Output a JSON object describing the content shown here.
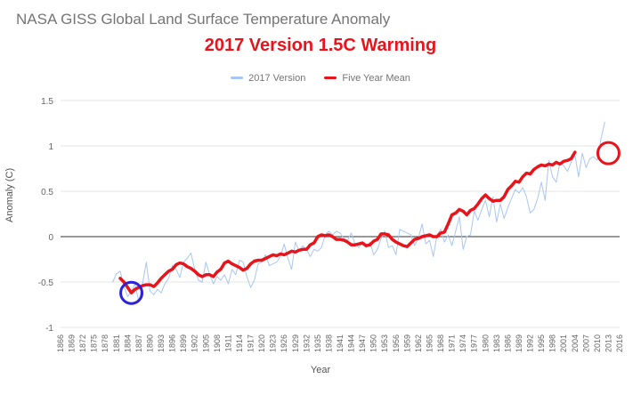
{
  "title": "NASA GISS Global Land Surface Temperature Anomaly",
  "subtitle": "2017 Version  1.5C Warming",
  "colors": {
    "raw": "#a9c6f5",
    "mean": "#e8141b",
    "blue_circle": "#2a23d8",
    "red_circle": "#e8141b",
    "zero_line": "#333333",
    "grid": "#e6e6e6"
  },
  "chart_data": {
    "type": "line",
    "xlabel": "Year",
    "ylabel": "Anomaly (C)",
    "xlim": [
      1866,
      2016
    ],
    "ylim": [
      -1,
      1.5
    ],
    "ytick_labels": [
      "1.5",
      "1",
      "0.5",
      "0",
      "-0.5",
      "-1"
    ],
    "ytick_values": [
      1.5,
      1,
      0.5,
      0,
      -0.5,
      -1
    ],
    "xtick_labels": [
      "1866",
      "1869",
      "1872",
      "1875",
      "1878",
      "1881",
      "1884",
      "1887",
      "1890",
      "1893",
      "1896",
      "1899",
      "1902",
      "1905",
      "1908",
      "1911",
      "1914",
      "1917",
      "1920",
      "1923",
      "1926",
      "1929",
      "1932",
      "1935",
      "1938",
      "1941",
      "1944",
      "1947",
      "1950",
      "1953",
      "1956",
      "1959",
      "1962",
      "1965",
      "1968",
      "1971",
      "1974",
      "1977",
      "1980",
      "1983",
      "1986",
      "1989",
      "1992",
      "1995",
      "1998",
      "2001",
      "2004",
      "2007",
      "2010",
      "2013",
      "2016"
    ],
    "legend_position": "top",
    "series": [
      {
        "name": "2017 Version",
        "x_start": 1880,
        "values": [
          -0.5,
          -0.41,
          -0.38,
          -0.55,
          -0.66,
          -0.6,
          -0.52,
          -0.72,
          -0.52,
          -0.28,
          -0.6,
          -0.64,
          -0.58,
          -0.62,
          -0.52,
          -0.46,
          -0.32,
          -0.36,
          -0.45,
          -0.28,
          -0.24,
          -0.18,
          -0.36,
          -0.48,
          -0.5,
          -0.28,
          -0.42,
          -0.52,
          -0.44,
          -0.48,
          -0.42,
          -0.52,
          -0.36,
          -0.42,
          -0.26,
          -0.28,
          -0.44,
          -0.56,
          -0.48,
          -0.3,
          -0.28,
          -0.2,
          -0.32,
          -0.3,
          -0.28,
          -0.22,
          -0.08,
          -0.24,
          -0.36,
          -0.06,
          -0.16,
          -0.1,
          -0.14,
          -0.22,
          -0.14,
          -0.16,
          -0.12,
          0.02,
          0.06,
          0.02,
          0.06,
          0.04,
          -0.02,
          -0.04,
          0.04,
          -0.08,
          -0.12,
          -0.06,
          -0.12,
          -0.06,
          -0.2,
          -0.14,
          -0.02,
          0.06,
          -0.12,
          -0.1,
          -0.2,
          0.08,
          0.06,
          0.04,
          0.02,
          -0.1,
          -0.02,
          0.14,
          -0.08,
          -0.04,
          -0.22,
          0.02,
          0.08,
          -0.06,
          0.02,
          -0.1,
          0.06,
          0.22,
          -0.14,
          0.0,
          0.02,
          0.28,
          0.18,
          0.3,
          0.4,
          0.22,
          0.44,
          0.16,
          0.36,
          0.2,
          0.32,
          0.42,
          0.52,
          0.48,
          0.54,
          0.44,
          0.26,
          0.3,
          0.42,
          0.6,
          0.4,
          0.84,
          0.66,
          0.6,
          0.82,
          0.78,
          0.72,
          0.82,
          0.9,
          0.66,
          0.92,
          0.76,
          0.86,
          0.88,
          0.84,
          1.08,
          1.26
        ]
      },
      {
        "name": "Five Year Mean",
        "x_start": 1882,
        "values": [
          -0.46,
          -0.5,
          -0.56,
          -0.62,
          -0.58,
          -0.56,
          -0.54,
          -0.53,
          -0.53,
          -0.55,
          -0.51,
          -0.46,
          -0.42,
          -0.38,
          -0.36,
          -0.31,
          -0.29,
          -0.3,
          -0.33,
          -0.35,
          -0.38,
          -0.42,
          -0.44,
          -0.42,
          -0.42,
          -0.44,
          -0.39,
          -0.36,
          -0.29,
          -0.27,
          -0.3,
          -0.32,
          -0.34,
          -0.37,
          -0.35,
          -0.3,
          -0.27,
          -0.26,
          -0.26,
          -0.24,
          -0.22,
          -0.2,
          -0.21,
          -0.19,
          -0.2,
          -0.18,
          -0.16,
          -0.17,
          -0.15,
          -0.14,
          -0.14,
          -0.09,
          -0.07,
          0.0,
          0.02,
          0.01,
          0.02,
          0.0,
          -0.03,
          -0.03,
          -0.04,
          -0.06,
          -0.09,
          -0.09,
          -0.08,
          -0.07,
          -0.1,
          -0.09,
          -0.05,
          -0.03,
          0.03,
          0.03,
          0.02,
          -0.03,
          -0.06,
          -0.08,
          -0.1,
          -0.11,
          -0.07,
          -0.03,
          -0.02,
          0.0,
          0.01,
          0.02,
          0.0,
          0.0,
          0.04,
          0.05,
          0.14,
          0.24,
          0.26,
          0.3,
          0.28,
          0.24,
          0.29,
          0.31,
          0.36,
          0.42,
          0.46,
          0.42,
          0.39,
          0.4,
          0.4,
          0.44,
          0.52,
          0.56,
          0.61,
          0.6,
          0.66,
          0.7,
          0.69,
          0.74,
          0.77,
          0.79,
          0.78,
          0.8,
          0.79,
          0.82,
          0.8,
          0.83,
          0.84,
          0.86,
          0.93
        ]
      }
    ]
  }
}
